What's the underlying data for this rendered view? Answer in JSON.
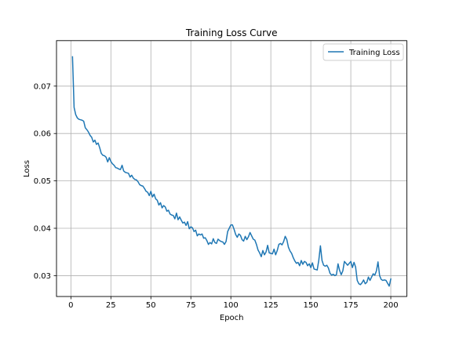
{
  "chart_data": {
    "type": "line",
    "title": "Training Loss Curve",
    "xlabel": "Epoch",
    "ylabel": "Loss",
    "xlim": [
      -9,
      210
    ],
    "ylim": [
      0.0256,
      0.0796
    ],
    "xticks": [
      0,
      25,
      50,
      75,
      100,
      125,
      150,
      175,
      200
    ],
    "yticks": [
      0.03,
      0.04,
      0.05,
      0.06,
      0.07
    ],
    "ytick_labels": [
      "0.03",
      "0.04",
      "0.05",
      "0.06",
      "0.07"
    ],
    "grid": true,
    "legend_position": "top-right",
    "series": [
      {
        "name": "Training Loss",
        "color": "#1f77b4",
        "x_start": 1,
        "x_step": 1,
        "values": [
          0.0762,
          0.0655,
          0.064,
          0.0633,
          0.063,
          0.0629,
          0.0628,
          0.0626,
          0.0612,
          0.0608,
          0.0603,
          0.0596,
          0.0592,
          0.0582,
          0.0586,
          0.0577,
          0.058,
          0.057,
          0.0558,
          0.0554,
          0.0553,
          0.055,
          0.054,
          0.0549,
          0.0541,
          0.0536,
          0.0533,
          0.0528,
          0.0527,
          0.0525,
          0.0524,
          0.0533,
          0.0521,
          0.0518,
          0.0517,
          0.0516,
          0.0508,
          0.0512,
          0.0506,
          0.0503,
          0.0502,
          0.0498,
          0.0492,
          0.049,
          0.0489,
          0.0484,
          0.0478,
          0.0476,
          0.0469,
          0.0478,
          0.0466,
          0.0472,
          0.0462,
          0.0459,
          0.0449,
          0.0454,
          0.0443,
          0.0448,
          0.0445,
          0.0436,
          0.0438,
          0.043,
          0.0428,
          0.0427,
          0.042,
          0.0432,
          0.0418,
          0.0424,
          0.0417,
          0.0411,
          0.0413,
          0.0406,
          0.0414,
          0.0399,
          0.0403,
          0.0401,
          0.0393,
          0.0396,
          0.0384,
          0.0388,
          0.0386,
          0.0388,
          0.0379,
          0.038,
          0.0374,
          0.0366,
          0.037,
          0.0367,
          0.0378,
          0.037,
          0.0368,
          0.0377,
          0.0374,
          0.0372,
          0.0371,
          0.0366,
          0.0372,
          0.0393,
          0.04,
          0.0407,
          0.0407,
          0.0398,
          0.0387,
          0.0381,
          0.0388,
          0.0385,
          0.0376,
          0.0373,
          0.0383,
          0.0376,
          0.0382,
          0.0391,
          0.0384,
          0.0377,
          0.0375,
          0.0366,
          0.0354,
          0.0348,
          0.034,
          0.0353,
          0.0344,
          0.035,
          0.0364,
          0.0348,
          0.0347,
          0.0346,
          0.0356,
          0.0344,
          0.0353,
          0.0366,
          0.0368,
          0.0365,
          0.0372,
          0.0383,
          0.0376,
          0.036,
          0.0352,
          0.0347,
          0.0338,
          0.0331,
          0.0326,
          0.0328,
          0.0321,
          0.0332,
          0.0324,
          0.033,
          0.0328,
          0.0321,
          0.0325,
          0.0317,
          0.0327,
          0.0314,
          0.0313,
          0.0312,
          0.0333,
          0.0363,
          0.0332,
          0.0322,
          0.032,
          0.0322,
          0.0316,
          0.0305,
          0.0301,
          0.0303,
          0.03,
          0.0302,
          0.0325,
          0.0311,
          0.0302,
          0.031,
          0.033,
          0.0326,
          0.0322,
          0.0326,
          0.033,
          0.0317,
          0.0328,
          0.0318,
          0.029,
          0.0283,
          0.0281,
          0.0285,
          0.0291,
          0.0283,
          0.0286,
          0.0297,
          0.029,
          0.0297,
          0.0304,
          0.0301,
          0.031,
          0.0329,
          0.03,
          0.0292,
          0.029,
          0.0291,
          0.029,
          0.0284,
          0.0278,
          0.0293
        ]
      }
    ]
  }
}
